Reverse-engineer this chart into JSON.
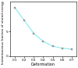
{
  "x": [
    0.1,
    0.2,
    0.3,
    0.4,
    0.5,
    0.6,
    0.7
  ],
  "y": [
    9.8,
    7.2,
    4.6,
    3.0,
    2.0,
    1.6,
    1.4
  ],
  "line_color": "#88e8f0",
  "marker_color": "#999999",
  "marker": "s",
  "marker_size": 2.0,
  "linestyle": "-",
  "linewidth": 0.8,
  "xlabel": "Deformation",
  "ylabel": "Instantaneous fraction of stored energy (%)",
  "xlim": [
    0.05,
    0.75
  ],
  "ylim": [
    0,
    11
  ],
  "xticks": [
    0.1,
    0.2,
    0.3,
    0.4,
    0.5,
    0.6,
    0.7
  ],
  "yticks": [
    0,
    5
  ],
  "xlabel_fontsize": 3.5,
  "ylabel_fontsize": 3.0,
  "tick_fontsize": 3.0,
  "background_color": "#ffffff",
  "figwidth": 1.0,
  "figheight": 0.87,
  "dpi": 100
}
